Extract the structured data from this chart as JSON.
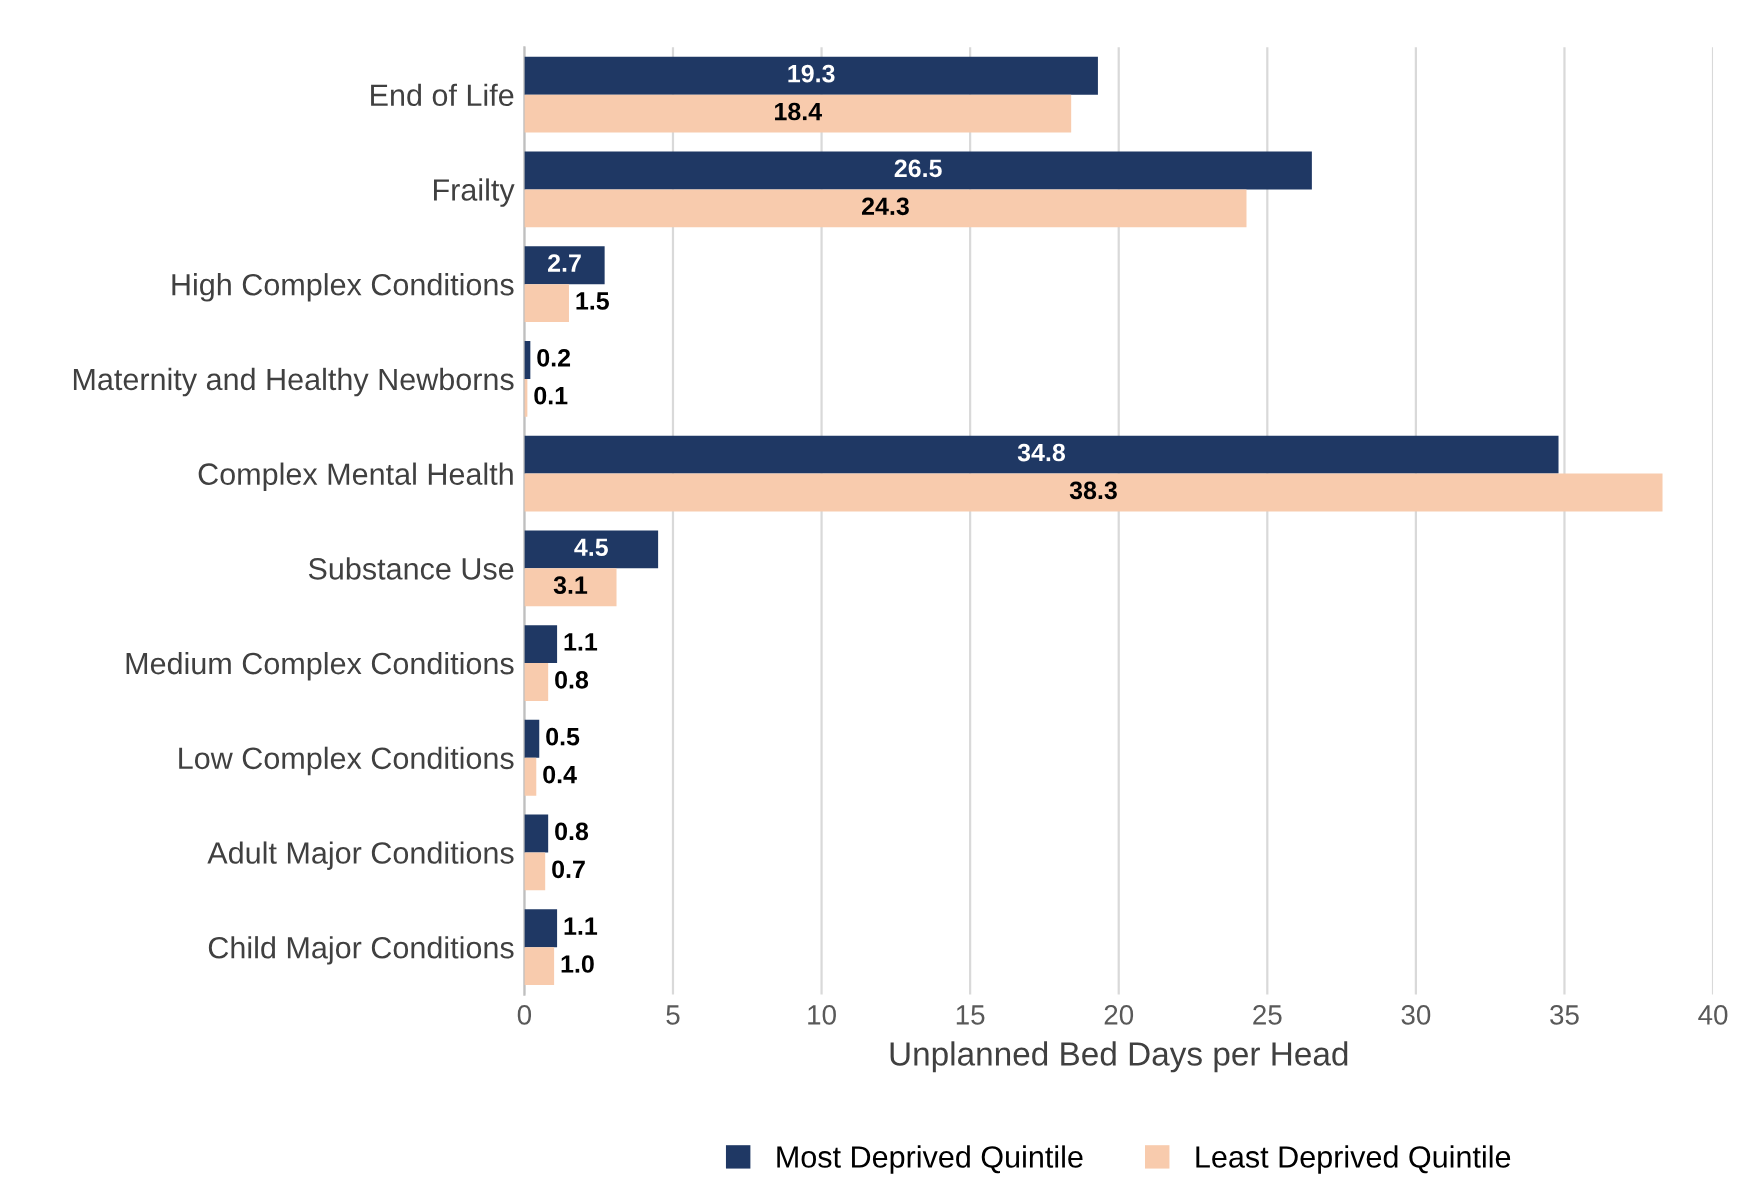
{
  "chart_data": {
    "type": "bar",
    "orientation": "horizontal",
    "xlabel": "Unplanned Bed Days per Head",
    "categories": [
      "End of Life",
      "Frailty",
      "High Complex Conditions",
      "Maternity and Healthy Newborns",
      "Complex Mental Health",
      "Substance Use",
      "Medium Complex Conditions",
      "Low Complex Conditions",
      "Adult Major Conditions",
      "Child Major Conditions"
    ],
    "series": [
      {
        "name": "Most Deprived Quintile",
        "color": "#1f3864",
        "values": [
          19.3,
          26.5,
          2.7,
          0.2,
          34.8,
          4.5,
          1.1,
          0.5,
          0.8,
          1.1
        ],
        "value_labels": [
          "19.3",
          "26.5",
          "2.7",
          "0.2",
          "34.8",
          "4.5",
          "1.1",
          "0.5",
          "0.8",
          "1.1"
        ]
      },
      {
        "name": "Least Deprived Quintile",
        "color": "#f8cbad",
        "values": [
          18.4,
          24.3,
          1.5,
          0.1,
          38.3,
          3.1,
          0.8,
          0.4,
          0.7,
          1.0
        ],
        "value_labels": [
          "18.4",
          "24.3",
          "1.5",
          "0.1",
          "38.3",
          "3.1",
          "0.8",
          "0.4",
          "0.7",
          "1.0"
        ]
      }
    ],
    "xlim": [
      0,
      40
    ],
    "xticks": [
      0,
      5,
      10,
      15,
      20,
      25,
      30,
      35,
      40
    ],
    "grid": "x",
    "legend": "bottom"
  }
}
